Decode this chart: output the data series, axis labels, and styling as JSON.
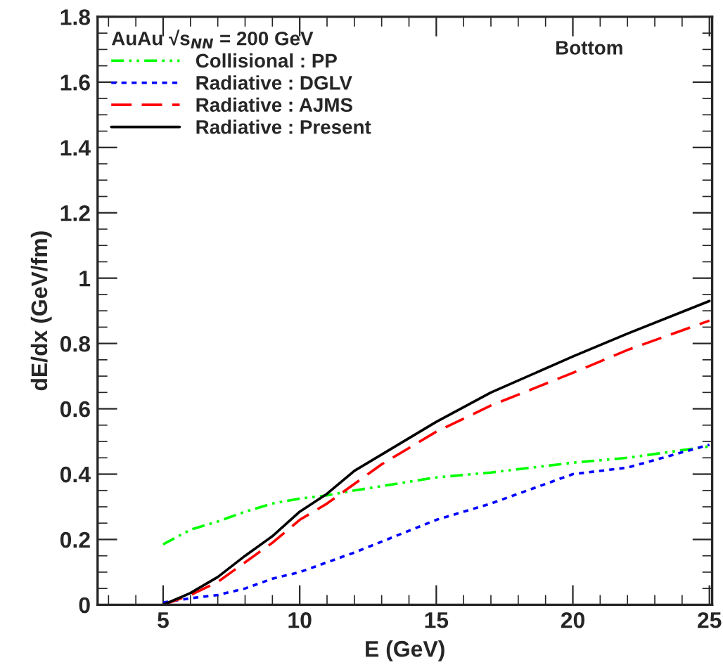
{
  "chart_data": {
    "type": "line",
    "xlabel": "E (GeV)",
    "ylabel": "dE/dx (GeV/fm)",
    "legend_title": "AuAu √s$_{NN}$ = 200 GeV",
    "annotations": [
      "Bottom"
    ],
    "xlim": [
      2.6,
      25.1
    ],
    "ylim": [
      0,
      1.8
    ],
    "xticks": [
      5,
      10,
      15,
      20,
      25
    ],
    "yticks": [
      0,
      0.2,
      0.4,
      0.6,
      0.8,
      1,
      1.2,
      1.4,
      1.6,
      1.8
    ],
    "grid": false,
    "legend": "top left",
    "series": [
      {
        "name": "Collisional : PP",
        "color": "#00ff00",
        "line_style": "dashdotdot",
        "x": [
          5,
          6,
          7,
          8,
          9,
          10,
          11,
          12,
          15,
          17,
          20,
          22,
          25
        ],
        "values": [
          0.185,
          0.23,
          0.255,
          0.285,
          0.31,
          0.325,
          0.335,
          0.35,
          0.39,
          0.405,
          0.435,
          0.45,
          0.485
        ]
      },
      {
        "name": "Radiative : DGLV",
        "color": "#0000ff",
        "line_style": "dotted",
        "x": [
          5,
          6,
          7,
          8,
          9,
          10,
          12,
          15,
          17,
          20,
          22,
          25
        ],
        "values": [
          0.007,
          0.02,
          0.03,
          0.05,
          0.08,
          0.1,
          0.16,
          0.26,
          0.31,
          0.4,
          0.42,
          0.49
        ]
      },
      {
        "name": "Radiative : AJMS",
        "color": "#ff0000",
        "line_style": "dashed",
        "x": [
          5,
          6,
          7,
          8,
          9,
          10,
          11,
          12,
          13,
          15,
          17,
          20,
          22,
          25
        ],
        "values": [
          0,
          0.03,
          0.07,
          0.13,
          0.19,
          0.26,
          0.31,
          0.37,
          0.43,
          0.53,
          0.61,
          0.71,
          0.78,
          0.87
        ]
      },
      {
        "name": "Radiative : Present",
        "color": "#000000",
        "line_style": "solid",
        "x": [
          5,
          6,
          7,
          8,
          9,
          10,
          11,
          12,
          13,
          14,
          15,
          17,
          20,
          22,
          25
        ],
        "values": [
          0,
          0.036,
          0.085,
          0.15,
          0.21,
          0.285,
          0.34,
          0.41,
          0.46,
          0.51,
          0.56,
          0.65,
          0.76,
          0.83,
          0.93
        ]
      }
    ]
  }
}
